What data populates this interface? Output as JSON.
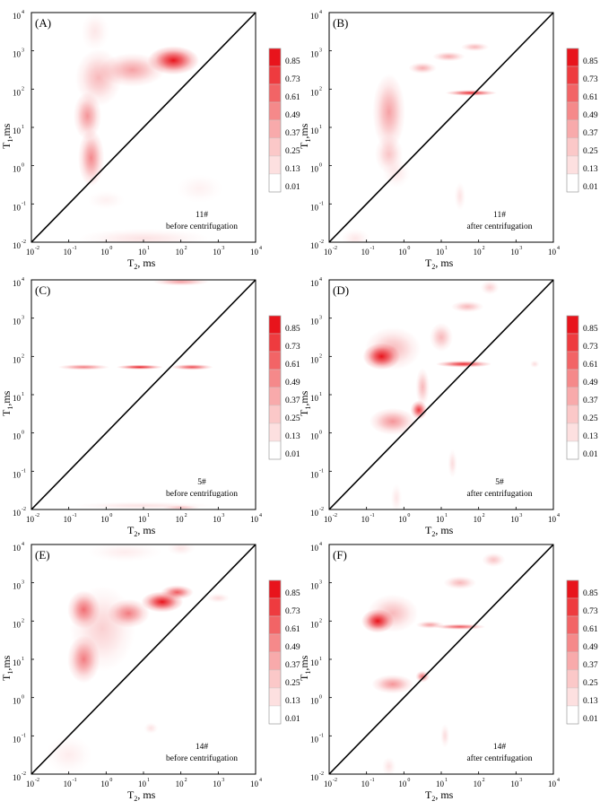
{
  "figure": {
    "colorbar_levels": [
      "0.85",
      "0.73",
      "0.61",
      "0.49",
      "0.37",
      "0.25",
      "0.13",
      "0.01"
    ],
    "tick_base": "10",
    "tick_exponents": [
      "-2",
      "-1",
      "0",
      "1",
      "2",
      "3",
      "4"
    ],
    "colors": {
      "peak": "#e8141c",
      "low": "#fde8e8",
      "axis": "#000000"
    }
  },
  "chart_data": [
    {
      "type": "heatmap",
      "panel": "A",
      "panel_label": "(A)",
      "annotation_id": "11#",
      "annotation_state": "before centrifugation",
      "x_label": "T",
      "x_sub": "2",
      "x_unit": ", ms",
      "y_label": "T",
      "y_sub": "1",
      "y_unit": ",ms",
      "xlim_log10": [
        -2,
        4
      ],
      "ylim_log10": [
        -2,
        4
      ],
      "diagonal": "T1=T2",
      "blobs": [
        {
          "log_t2": 1.8,
          "log_t1": 2.75,
          "sx": 0.55,
          "sy": 0.3,
          "a": 1.0
        },
        {
          "log_t2": 0.7,
          "log_t1": 2.5,
          "sx": 0.7,
          "sy": 0.35,
          "a": 0.4
        },
        {
          "log_t2": -0.4,
          "log_t1": 0.2,
          "sx": 0.28,
          "sy": 0.6,
          "a": 0.5
        },
        {
          "log_t2": -0.5,
          "log_t1": 1.3,
          "sx": 0.3,
          "sy": 0.5,
          "a": 0.45
        },
        {
          "log_t2": -0.2,
          "log_t1": 2.3,
          "sx": 0.5,
          "sy": 0.6,
          "a": 0.3
        },
        {
          "log_t2": -0.3,
          "log_t1": 3.5,
          "sx": 0.3,
          "sy": 0.4,
          "a": 0.1
        },
        {
          "log_t2": 1.0,
          "log_t1": -1.9,
          "sx": 1.4,
          "sy": 0.2,
          "a": 0.12
        },
        {
          "log_t2": 2.5,
          "log_t1": -0.6,
          "sx": 0.5,
          "sy": 0.3,
          "a": 0.06
        },
        {
          "log_t2": 0.0,
          "log_t1": -0.9,
          "sx": 0.4,
          "sy": 0.2,
          "a": 0.06
        }
      ]
    },
    {
      "type": "heatmap",
      "panel": "B",
      "panel_label": "(B)",
      "annotation_id": "11#",
      "annotation_state": "after centrifugation",
      "x_label": "T",
      "x_sub": "2",
      "x_unit": ", ms",
      "y_label": "T",
      "y_sub": "1",
      "y_unit": ",ms",
      "xlim_log10": [
        -2,
        4
      ],
      "ylim_log10": [
        -2,
        4
      ],
      "diagonal": "T1=T2",
      "blobs": [
        {
          "log_t2": 1.8,
          "log_t1": 1.9,
          "sx": 0.55,
          "sy": 0.06,
          "a": 0.9
        },
        {
          "log_t2": -0.4,
          "log_t1": 1.4,
          "sx": 0.35,
          "sy": 0.8,
          "a": 0.4
        },
        {
          "log_t2": -0.4,
          "log_t1": 0.3,
          "sx": 0.3,
          "sy": 0.4,
          "a": 0.25
        },
        {
          "log_t2": 0.5,
          "log_t1": 2.55,
          "sx": 0.3,
          "sy": 0.12,
          "a": 0.35
        },
        {
          "log_t2": 1.2,
          "log_t1": 2.85,
          "sx": 0.35,
          "sy": 0.1,
          "a": 0.35
        },
        {
          "log_t2": 1.9,
          "log_t1": 3.1,
          "sx": 0.3,
          "sy": 0.09,
          "a": 0.3
        },
        {
          "log_t2": 1.5,
          "log_t1": -0.8,
          "sx": 0.12,
          "sy": 0.3,
          "a": 0.12
        },
        {
          "log_t2": -1.3,
          "log_t1": -1.9,
          "sx": 0.3,
          "sy": 0.2,
          "a": 0.1
        },
        {
          "log_t2": -0.2,
          "log_t1": -0.2,
          "sx": 0.3,
          "sy": 0.3,
          "a": 0.1
        }
      ]
    },
    {
      "type": "heatmap",
      "panel": "C",
      "panel_label": "(C)",
      "annotation_id": "5#",
      "annotation_state": "before centrifugation",
      "x_label": "T",
      "x_sub": "2",
      "x_unit": ", ms",
      "y_label": "T",
      "y_sub": "1",
      "y_unit": ",ms",
      "xlim_log10": [
        -2,
        4
      ],
      "ylim_log10": [
        -2,
        4
      ],
      "diagonal": "T1=T2",
      "blobs": [
        {
          "log_t2": 0.9,
          "log_t1": 1.72,
          "sx": 0.5,
          "sy": 0.05,
          "a": 0.95
        },
        {
          "log_t2": -0.6,
          "log_t1": 1.72,
          "sx": 0.55,
          "sy": 0.06,
          "a": 0.55
        },
        {
          "log_t2": 2.3,
          "log_t1": 1.72,
          "sx": 0.45,
          "sy": 0.06,
          "a": 0.75
        },
        {
          "log_t2": 2.0,
          "log_t1": 3.95,
          "sx": 0.6,
          "sy": 0.08,
          "a": 0.4
        },
        {
          "log_t2": 1.0,
          "log_t1": -1.9,
          "sx": 1.5,
          "sy": 0.08,
          "a": 0.12
        },
        {
          "log_t2": 2.0,
          "log_t1": -1.95,
          "sx": 0.4,
          "sy": 0.05,
          "a": 0.25
        }
      ]
    },
    {
      "type": "heatmap",
      "panel": "D",
      "panel_label": "(D)",
      "annotation_id": "5#",
      "annotation_state": "after centrifugation",
      "x_label": "T",
      "x_sub": "2",
      "x_unit": ", ms",
      "y_label": "T",
      "y_sub": "1",
      "y_unit": ",ms",
      "xlim_log10": [
        -2,
        4
      ],
      "ylim_log10": [
        -2,
        4
      ],
      "diagonal": "T1=T2",
      "blobs": [
        {
          "log_t2": -0.6,
          "log_t1": 2.0,
          "sx": 0.4,
          "sy": 0.28,
          "a": 1.0
        },
        {
          "log_t2": -0.3,
          "log_t1": 2.2,
          "sx": 0.6,
          "sy": 0.45,
          "a": 0.3
        },
        {
          "log_t2": 0.4,
          "log_t1": 0.6,
          "sx": 0.18,
          "sy": 0.2,
          "a": 0.85
        },
        {
          "log_t2": -0.3,
          "log_t1": 0.3,
          "sx": 0.5,
          "sy": 0.28,
          "a": 0.45
        },
        {
          "log_t2": 1.6,
          "log_t1": 1.8,
          "sx": 0.6,
          "sy": 0.07,
          "a": 0.9
        },
        {
          "log_t2": 0.5,
          "log_t1": 1.2,
          "sx": 0.15,
          "sy": 0.4,
          "a": 0.3
        },
        {
          "log_t2": 1.0,
          "log_t1": 2.5,
          "sx": 0.25,
          "sy": 0.3,
          "a": 0.3
        },
        {
          "log_t2": 1.7,
          "log_t1": 3.3,
          "sx": 0.35,
          "sy": 0.12,
          "a": 0.3
        },
        {
          "log_t2": 2.3,
          "log_t1": 3.8,
          "sx": 0.2,
          "sy": 0.15,
          "a": 0.2
        },
        {
          "log_t2": 1.3,
          "log_t1": -0.8,
          "sx": 0.1,
          "sy": 0.3,
          "a": 0.15
        },
        {
          "log_t2": -0.2,
          "log_t1": -1.7,
          "sx": 0.12,
          "sy": 0.3,
          "a": 0.1
        },
        {
          "log_t2": 3.5,
          "log_t1": 1.8,
          "sx": 0.1,
          "sy": 0.08,
          "a": 0.15
        }
      ]
    },
    {
      "type": "heatmap",
      "panel": "E",
      "panel_label": "(E)",
      "annotation_id": "14#",
      "annotation_state": "before centrifugation",
      "x_label": "T",
      "x_sub": "2",
      "x_unit": ", ms",
      "y_label": "T",
      "y_sub": "1",
      "y_unit": ",ms",
      "xlim_log10": [
        -2,
        4
      ],
      "ylim_log10": [
        -2,
        4
      ],
      "diagonal": "T1=T2",
      "blobs": [
        {
          "log_t2": 1.5,
          "log_t1": 2.5,
          "sx": 0.45,
          "sy": 0.22,
          "a": 1.0
        },
        {
          "log_t2": 1.9,
          "log_t1": 2.75,
          "sx": 0.35,
          "sy": 0.15,
          "a": 0.7
        },
        {
          "log_t2": 0.6,
          "log_t1": 2.2,
          "sx": 0.45,
          "sy": 0.3,
          "a": 0.55
        },
        {
          "log_t2": -0.6,
          "log_t1": 2.3,
          "sx": 0.35,
          "sy": 0.4,
          "a": 0.6
        },
        {
          "log_t2": -0.6,
          "log_t1": 1.0,
          "sx": 0.35,
          "sy": 0.5,
          "a": 0.55
        },
        {
          "log_t2": -0.1,
          "log_t1": 1.8,
          "sx": 0.7,
          "sy": 0.9,
          "a": 0.2
        },
        {
          "log_t2": 0.5,
          "log_t1": 3.8,
          "sx": 0.8,
          "sy": 0.2,
          "a": 0.08
        },
        {
          "log_t2": 2.0,
          "log_t1": 3.9,
          "sx": 0.3,
          "sy": 0.15,
          "a": 0.1
        },
        {
          "log_t2": 1.2,
          "log_t1": -0.8,
          "sx": 0.15,
          "sy": 0.12,
          "a": 0.12
        },
        {
          "log_t2": -1.0,
          "log_t1": -1.5,
          "sx": 0.5,
          "sy": 0.4,
          "a": 0.08
        },
        {
          "log_t2": 3.0,
          "log_t1": 2.6,
          "sx": 0.25,
          "sy": 0.1,
          "a": 0.15
        }
      ]
    },
    {
      "type": "heatmap",
      "panel": "F",
      "panel_label": "(F)",
      "annotation_id": "14#",
      "annotation_state": "after centrifugation",
      "x_label": "T",
      "x_sub": "2",
      "x_unit": ", ms",
      "y_label": "T",
      "y_sub": "1",
      "y_unit": ",ms",
      "xlim_log10": [
        -2,
        4
      ],
      "ylim_log10": [
        -2,
        4
      ],
      "diagonal": "T1=T2",
      "blobs": [
        {
          "log_t2": -0.7,
          "log_t1": 2.0,
          "sx": 0.35,
          "sy": 0.25,
          "a": 1.0
        },
        {
          "log_t2": -0.3,
          "log_t1": 2.2,
          "sx": 0.55,
          "sy": 0.4,
          "a": 0.3
        },
        {
          "log_t2": 1.5,
          "log_t1": 1.85,
          "sx": 0.55,
          "sy": 0.06,
          "a": 0.7
        },
        {
          "log_t2": 0.7,
          "log_t1": 1.9,
          "sx": 0.3,
          "sy": 0.08,
          "a": 0.4
        },
        {
          "log_t2": -0.3,
          "log_t1": 0.35,
          "sx": 0.45,
          "sy": 0.2,
          "a": 0.45
        },
        {
          "log_t2": 0.5,
          "log_t1": 0.55,
          "sx": 0.15,
          "sy": 0.12,
          "a": 0.6
        },
        {
          "log_t2": 1.5,
          "log_t1": 3.0,
          "sx": 0.35,
          "sy": 0.14,
          "a": 0.3
        },
        {
          "log_t2": 2.4,
          "log_t1": 3.6,
          "sx": 0.25,
          "sy": 0.15,
          "a": 0.25
        },
        {
          "log_t2": 1.1,
          "log_t1": -1.0,
          "sx": 0.1,
          "sy": 0.25,
          "a": 0.15
        },
        {
          "log_t2": -0.4,
          "log_t1": -1.8,
          "sx": 0.15,
          "sy": 0.2,
          "a": 0.12
        }
      ]
    }
  ]
}
